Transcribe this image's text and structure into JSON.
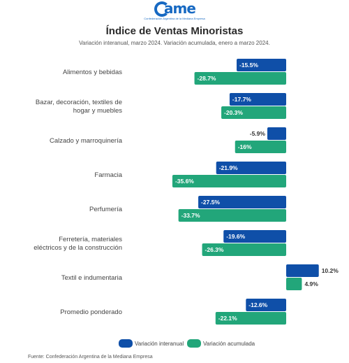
{
  "header": {
    "logo_text": "ame",
    "logo_sub": "Confederación Argentina de la Mediana Empresa",
    "title": "Índice de Ventas Minoristas",
    "subtitle": "Variación interanual, marzo 2024. Variación acumulada, enero a marzo 2024."
  },
  "footer": {
    "source": "Fuente: Confederación Argentina de la Mediana Empresa"
  },
  "colors": {
    "interanual": "#0f4fa8",
    "acumulada": "#22a67a"
  },
  "chart_data": {
    "type": "bar",
    "orientation": "horizontal",
    "title": "Índice de Ventas Minoristas",
    "categories": [
      [
        "Alimentos y bebidas"
      ],
      [
        "Bazar, decoración, textiles de",
        "hogar y muebles"
      ],
      [
        "Calzado y marroquinería"
      ],
      [
        "Farmacia"
      ],
      [
        "Perfumería"
      ],
      [
        "Ferretería, materiales",
        "eléctricos y de la construcción"
      ],
      [
        "Textil e indumentaria"
      ],
      [
        "Promedio ponderado"
      ]
    ],
    "series": [
      {
        "name": "Variación interanual",
        "values": [
          -15.5,
          -17.7,
          -5.9,
          -21.9,
          -27.5,
          -19.6,
          10.2,
          -12.6
        ],
        "labels": [
          "-15.5%",
          "-17.7%",
          "-5.9%",
          "-21.9%",
          "-27.5%",
          "-19.6%",
          "10.2%",
          "-12.6%"
        ]
      },
      {
        "name": "Variación acumulada",
        "values": [
          -28.7,
          -20.3,
          -16,
          -35.6,
          -33.7,
          -26.3,
          4.9,
          -22.1
        ],
        "labels": [
          "-28.7%",
          "-20.3%",
          "-16%",
          "-35.6%",
          "-33.7%",
          "-26.3%",
          "4.9%",
          "-22.1%"
        ]
      }
    ],
    "legend_position": "bottom",
    "grid": false
  }
}
